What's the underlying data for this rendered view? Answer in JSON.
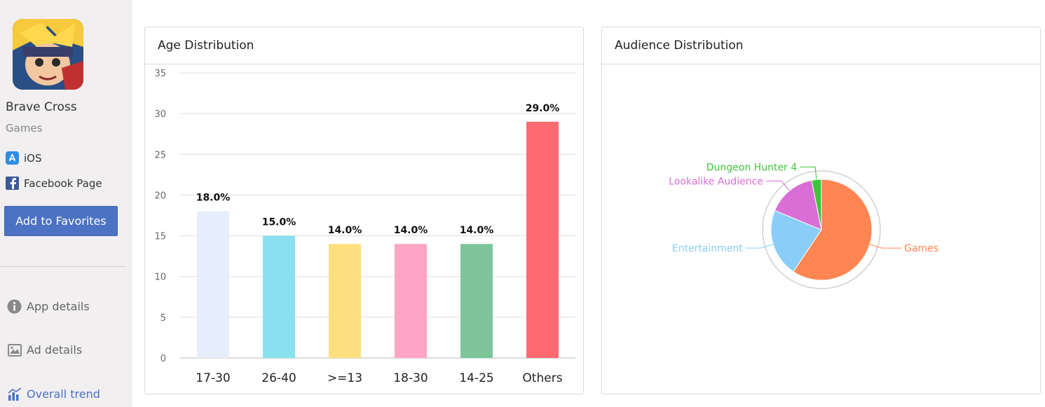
{
  "sidebar": {
    "app_name": "Brave Cross",
    "category": "Games",
    "platforms": [
      {
        "label": "iOS",
        "icon": "app-store-icon"
      },
      {
        "label": "Facebook Page",
        "icon": "facebook-icon"
      }
    ],
    "favorite_button": "Add to Favorites",
    "nav": [
      {
        "label": "App details",
        "icon": "info-icon"
      },
      {
        "label": "Ad details",
        "icon": "image-icon"
      },
      {
        "label": "Overall trend",
        "icon": "bar-chart-icon"
      }
    ]
  },
  "age_panel": {
    "title": "Age Distribution"
  },
  "audience_panel": {
    "title": "Audience Distribution"
  },
  "chart_data": [
    {
      "type": "bar",
      "title": "Age Distribution",
      "categories": [
        "17-30",
        "26-40",
        ">=13",
        "18-30",
        "14-25",
        "Others"
      ],
      "values": [
        18,
        15,
        14,
        14,
        14,
        29
      ],
      "data_labels": [
        "18.0%",
        "15.0%",
        "14.0%",
        "14.0%",
        "14.0%",
        "29.0%"
      ],
      "colors": [
        "#e6eefb",
        "#8be0ef",
        "#fedf80",
        "#fea4c5",
        "#7ec59c",
        "#fe6a71"
      ],
      "ylim": [
        0,
        35
      ],
      "yticks": [
        0,
        5,
        10,
        15,
        20,
        25,
        30,
        35
      ],
      "grid": true
    },
    {
      "type": "pie",
      "title": "Audience Distribution",
      "slices": [
        {
          "label": "Games",
          "value": 57,
          "color": "#ff8552"
        },
        {
          "label": "Entertainment",
          "value": 21,
          "color": "#8bcdf9"
        },
        {
          "label": "Lookalike Audience",
          "value": 15,
          "color": "#d86ed6"
        },
        {
          "label": "Dungeon Hunter 4",
          "value": 3,
          "color": "#3fc53c"
        }
      ]
    }
  ]
}
